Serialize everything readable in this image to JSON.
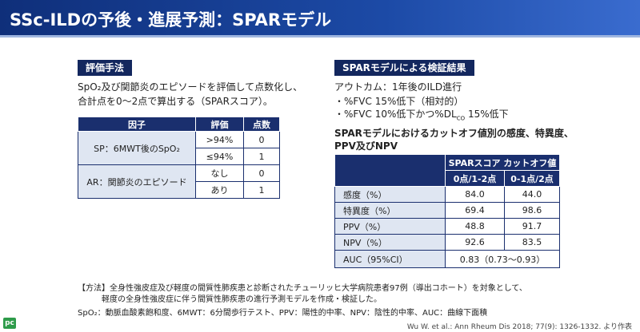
{
  "header": {
    "title": "SSc-ILDの予後・進展予測：SPARモデル"
  },
  "left": {
    "label": "評価手法",
    "lines": [
      "SpO₂及び関節炎のエピソードを評価して点数化し、",
      "合計点を0〜2点で算出する（SPARスコア）。"
    ],
    "table": {
      "header": [
        "因子",
        "評価",
        "点数"
      ],
      "groups": [
        {
          "factor": "SP：6MWT後のSpO₂",
          "rows": [
            [
              ">94%",
              "0"
            ],
            [
              "≤94%",
              "1"
            ]
          ]
        },
        {
          "factor": "AR：関節炎のエピソード",
          "rows": [
            [
              "なし",
              "0"
            ],
            [
              "あり",
              "1"
            ]
          ]
        }
      ]
    }
  },
  "right": {
    "label": "SPARモデルによる検証結果",
    "outcome": "アウトカム：1年後のILD進行",
    "bullet1": "・%FVC 15%低下（相対的）",
    "bullet2": {
      "before": "・%FVC 10%低下かつ%DL",
      "sub": "CO",
      "after": " 15%低下"
    },
    "subtitle": [
      "SPARモデルにおけるカットオフ値別の感度、特異度、",
      "PPV及びNPV"
    ],
    "table": {
      "group_header": "SPARスコア カットオフ値",
      "columns": [
        "0点/1-2点",
        "0-1点/2点"
      ],
      "rows": [
        [
          "感度（%）",
          "84.0",
          "44.0"
        ],
        [
          "特異度（%）",
          "69.4",
          "98.6"
        ],
        [
          "PPV（%）",
          "48.8",
          "91.7"
        ],
        [
          "NPV（%）",
          "92.6",
          "83.5"
        ]
      ],
      "auc": [
        "AUC（95%CI）",
        "0.83（0.73〜0.93）"
      ]
    }
  },
  "footer": {
    "method": [
      "【方法】全身性強皮症及び軽度の間質性肺疾患と診断されたチューリッヒ大学病院患者97例（導出コホート）を対象として、",
      "軽度の全身性強皮症に伴う間質性肺疾患の進行予測モデルを作成・検証した。"
    ],
    "abbrev": "SpO₂：動脈血酸素飽和度、6MWT：6分間歩行テスト、PPV：陽性的中率、NPV：陰性的中率、AUC：曲線下面積",
    "reference": "Wu W. et al.: Ann Rheum Dis 2018; 77(9): 1326-1332. より作表",
    "logo": "pc"
  }
}
